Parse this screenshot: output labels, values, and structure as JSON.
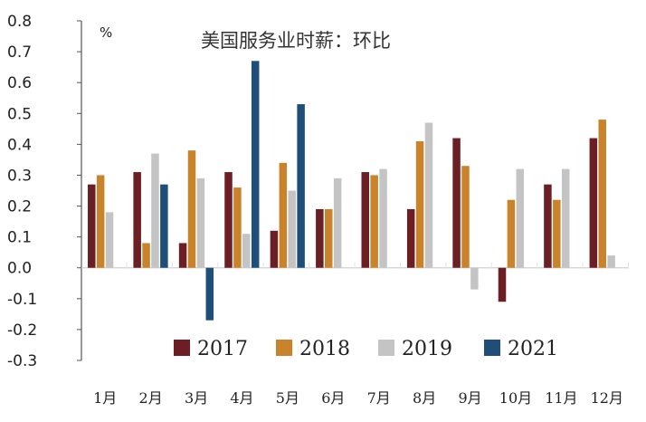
{
  "chart_data": {
    "type": "bar",
    "title": "美国服务业时薪：环比",
    "unit": "%",
    "categories": [
      "1月",
      "2月",
      "3月",
      "4月",
      "5月",
      "6月",
      "7月",
      "8月",
      "9月",
      "10月",
      "11月",
      "12月"
    ],
    "y_ticks": [
      "0.8",
      "0.7",
      "0.6",
      "0.5",
      "0.4",
      "0.3",
      "0.2",
      "0.1",
      "0.0",
      "-0.1",
      "-0.2",
      "-0.3"
    ],
    "ylim": [
      -0.3,
      0.8
    ],
    "legend_position": "bottom",
    "grid": false,
    "series": [
      {
        "name": "2017",
        "color": "#6b1f24",
        "values": [
          0.27,
          0.31,
          0.08,
          0.31,
          0.12,
          0.19,
          0.31,
          0.19,
          0.42,
          -0.11,
          0.27,
          0.42
        ]
      },
      {
        "name": "2018",
        "color": "#c8832b",
        "values": [
          0.3,
          0.08,
          0.38,
          0.26,
          0.34,
          0.19,
          0.3,
          0.41,
          0.33,
          0.22,
          0.22,
          0.48
        ]
      },
      {
        "name": "2019",
        "color": "#c4c4c4",
        "values": [
          0.18,
          0.37,
          0.29,
          0.11,
          0.25,
          0.29,
          0.32,
          0.47,
          -0.07,
          0.32,
          0.32,
          0.04
        ]
      },
      {
        "name": "2021",
        "color": "#1f4e79",
        "values": [
          null,
          0.27,
          -0.17,
          0.67,
          0.53,
          null,
          null,
          null,
          null,
          null,
          null,
          null
        ]
      }
    ]
  }
}
